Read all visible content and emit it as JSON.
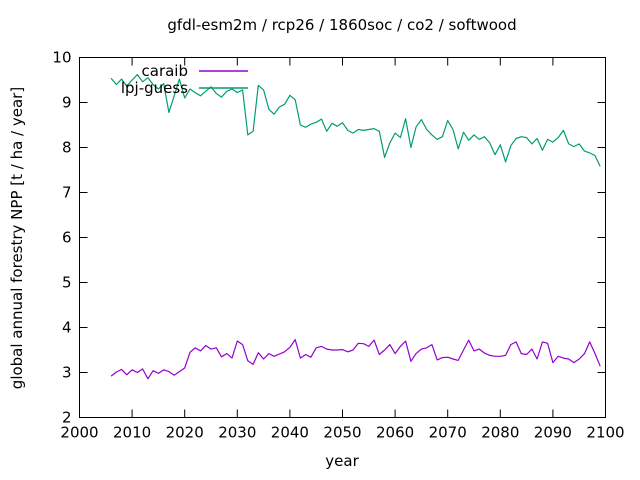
{
  "window": {
    "background": "#ffffff",
    "text_color": "#000000"
  },
  "chart_data": {
    "type": "line",
    "title": "gfdl-esm2m / rcp26 / 1860soc / co2 / softwood",
    "xlabel": "year",
    "ylabel": "global annual forestry NPP [t / ha / year]",
    "xlim": [
      2000,
      2100
    ],
    "ylim": [
      2,
      10
    ],
    "xticks": [
      2000,
      2010,
      2020,
      2030,
      2040,
      2050,
      2060,
      2070,
      2080,
      2090,
      2100
    ],
    "yticks": [
      2,
      3,
      4,
      5,
      6,
      7,
      8,
      9,
      10
    ],
    "grid": false,
    "legend_position": "top-left-inside",
    "x": [
      2006,
      2007,
      2008,
      2009,
      2010,
      2011,
      2012,
      2013,
      2014,
      2015,
      2016,
      2017,
      2018,
      2019,
      2020,
      2021,
      2022,
      2023,
      2024,
      2025,
      2026,
      2027,
      2028,
      2029,
      2030,
      2031,
      2032,
      2033,
      2034,
      2035,
      2036,
      2037,
      2038,
      2039,
      2040,
      2041,
      2042,
      2043,
      2044,
      2045,
      2046,
      2047,
      2048,
      2049,
      2050,
      2051,
      2052,
      2053,
      2054,
      2055,
      2056,
      2057,
      2058,
      2059,
      2060,
      2061,
      2062,
      2063,
      2064,
      2065,
      2066,
      2067,
      2068,
      2069,
      2070,
      2071,
      2072,
      2073,
      2074,
      2075,
      2076,
      2077,
      2078,
      2079,
      2080,
      2081,
      2082,
      2083,
      2084,
      2085,
      2086,
      2087,
      2088,
      2089,
      2090,
      2091,
      2092,
      2093,
      2094,
      2095,
      2096,
      2097,
      2098,
      2099
    ],
    "series": [
      {
        "name": "caraib",
        "color": "#9400d3",
        "values": [
          2.92,
          3.01,
          3.07,
          2.95,
          3.06,
          3.0,
          3.08,
          2.86,
          3.04,
          2.98,
          3.06,
          3.02,
          2.94,
          3.02,
          3.1,
          3.45,
          3.55,
          3.48,
          3.6,
          3.52,
          3.55,
          3.35,
          3.42,
          3.32,
          3.7,
          3.62,
          3.26,
          3.18,
          3.44,
          3.3,
          3.42,
          3.36,
          3.41,
          3.46,
          3.56,
          3.73,
          3.32,
          3.4,
          3.34,
          3.55,
          3.58,
          3.52,
          3.5,
          3.5,
          3.51,
          3.46,
          3.5,
          3.65,
          3.64,
          3.58,
          3.72,
          3.4,
          3.5,
          3.62,
          3.42,
          3.58,
          3.7,
          3.25,
          3.42,
          3.52,
          3.55,
          3.62,
          3.28,
          3.33,
          3.34,
          3.3,
          3.27,
          3.5,
          3.72,
          3.48,
          3.52,
          3.43,
          3.38,
          3.36,
          3.36,
          3.38,
          3.62,
          3.68,
          3.42,
          3.4,
          3.52,
          3.3,
          3.68,
          3.65,
          3.22,
          3.36,
          3.32,
          3.3,
          3.22,
          3.3,
          3.42,
          3.68,
          3.42,
          3.14
        ]
      },
      {
        "name": "lpj-guess",
        "color": "#009e73",
        "values": [
          9.54,
          9.4,
          9.52,
          9.36,
          9.5,
          9.62,
          9.46,
          9.55,
          9.4,
          9.3,
          9.42,
          8.78,
          9.15,
          9.52,
          9.1,
          9.3,
          9.22,
          9.15,
          9.25,
          9.35,
          9.2,
          9.12,
          9.25,
          9.3,
          9.22,
          9.28,
          8.28,
          8.36,
          9.38,
          9.28,
          8.85,
          8.74,
          8.9,
          8.96,
          9.16,
          9.06,
          8.5,
          8.45,
          8.52,
          8.56,
          8.63,
          8.36,
          8.54,
          8.47,
          8.55,
          8.38,
          8.32,
          8.4,
          8.38,
          8.4,
          8.42,
          8.36,
          7.78,
          8.1,
          8.32,
          8.22,
          8.64,
          8.0,
          8.46,
          8.62,
          8.4,
          8.28,
          8.18,
          8.24,
          8.6,
          8.4,
          7.97,
          8.34,
          8.16,
          8.28,
          8.18,
          8.24,
          8.1,
          7.84,
          8.06,
          7.68,
          8.04,
          8.2,
          8.24,
          8.22,
          8.08,
          8.2,
          7.94,
          8.18,
          8.12,
          8.22,
          8.38,
          8.08,
          8.02,
          8.08,
          7.92,
          7.88,
          7.82,
          7.58
        ]
      }
    ]
  }
}
